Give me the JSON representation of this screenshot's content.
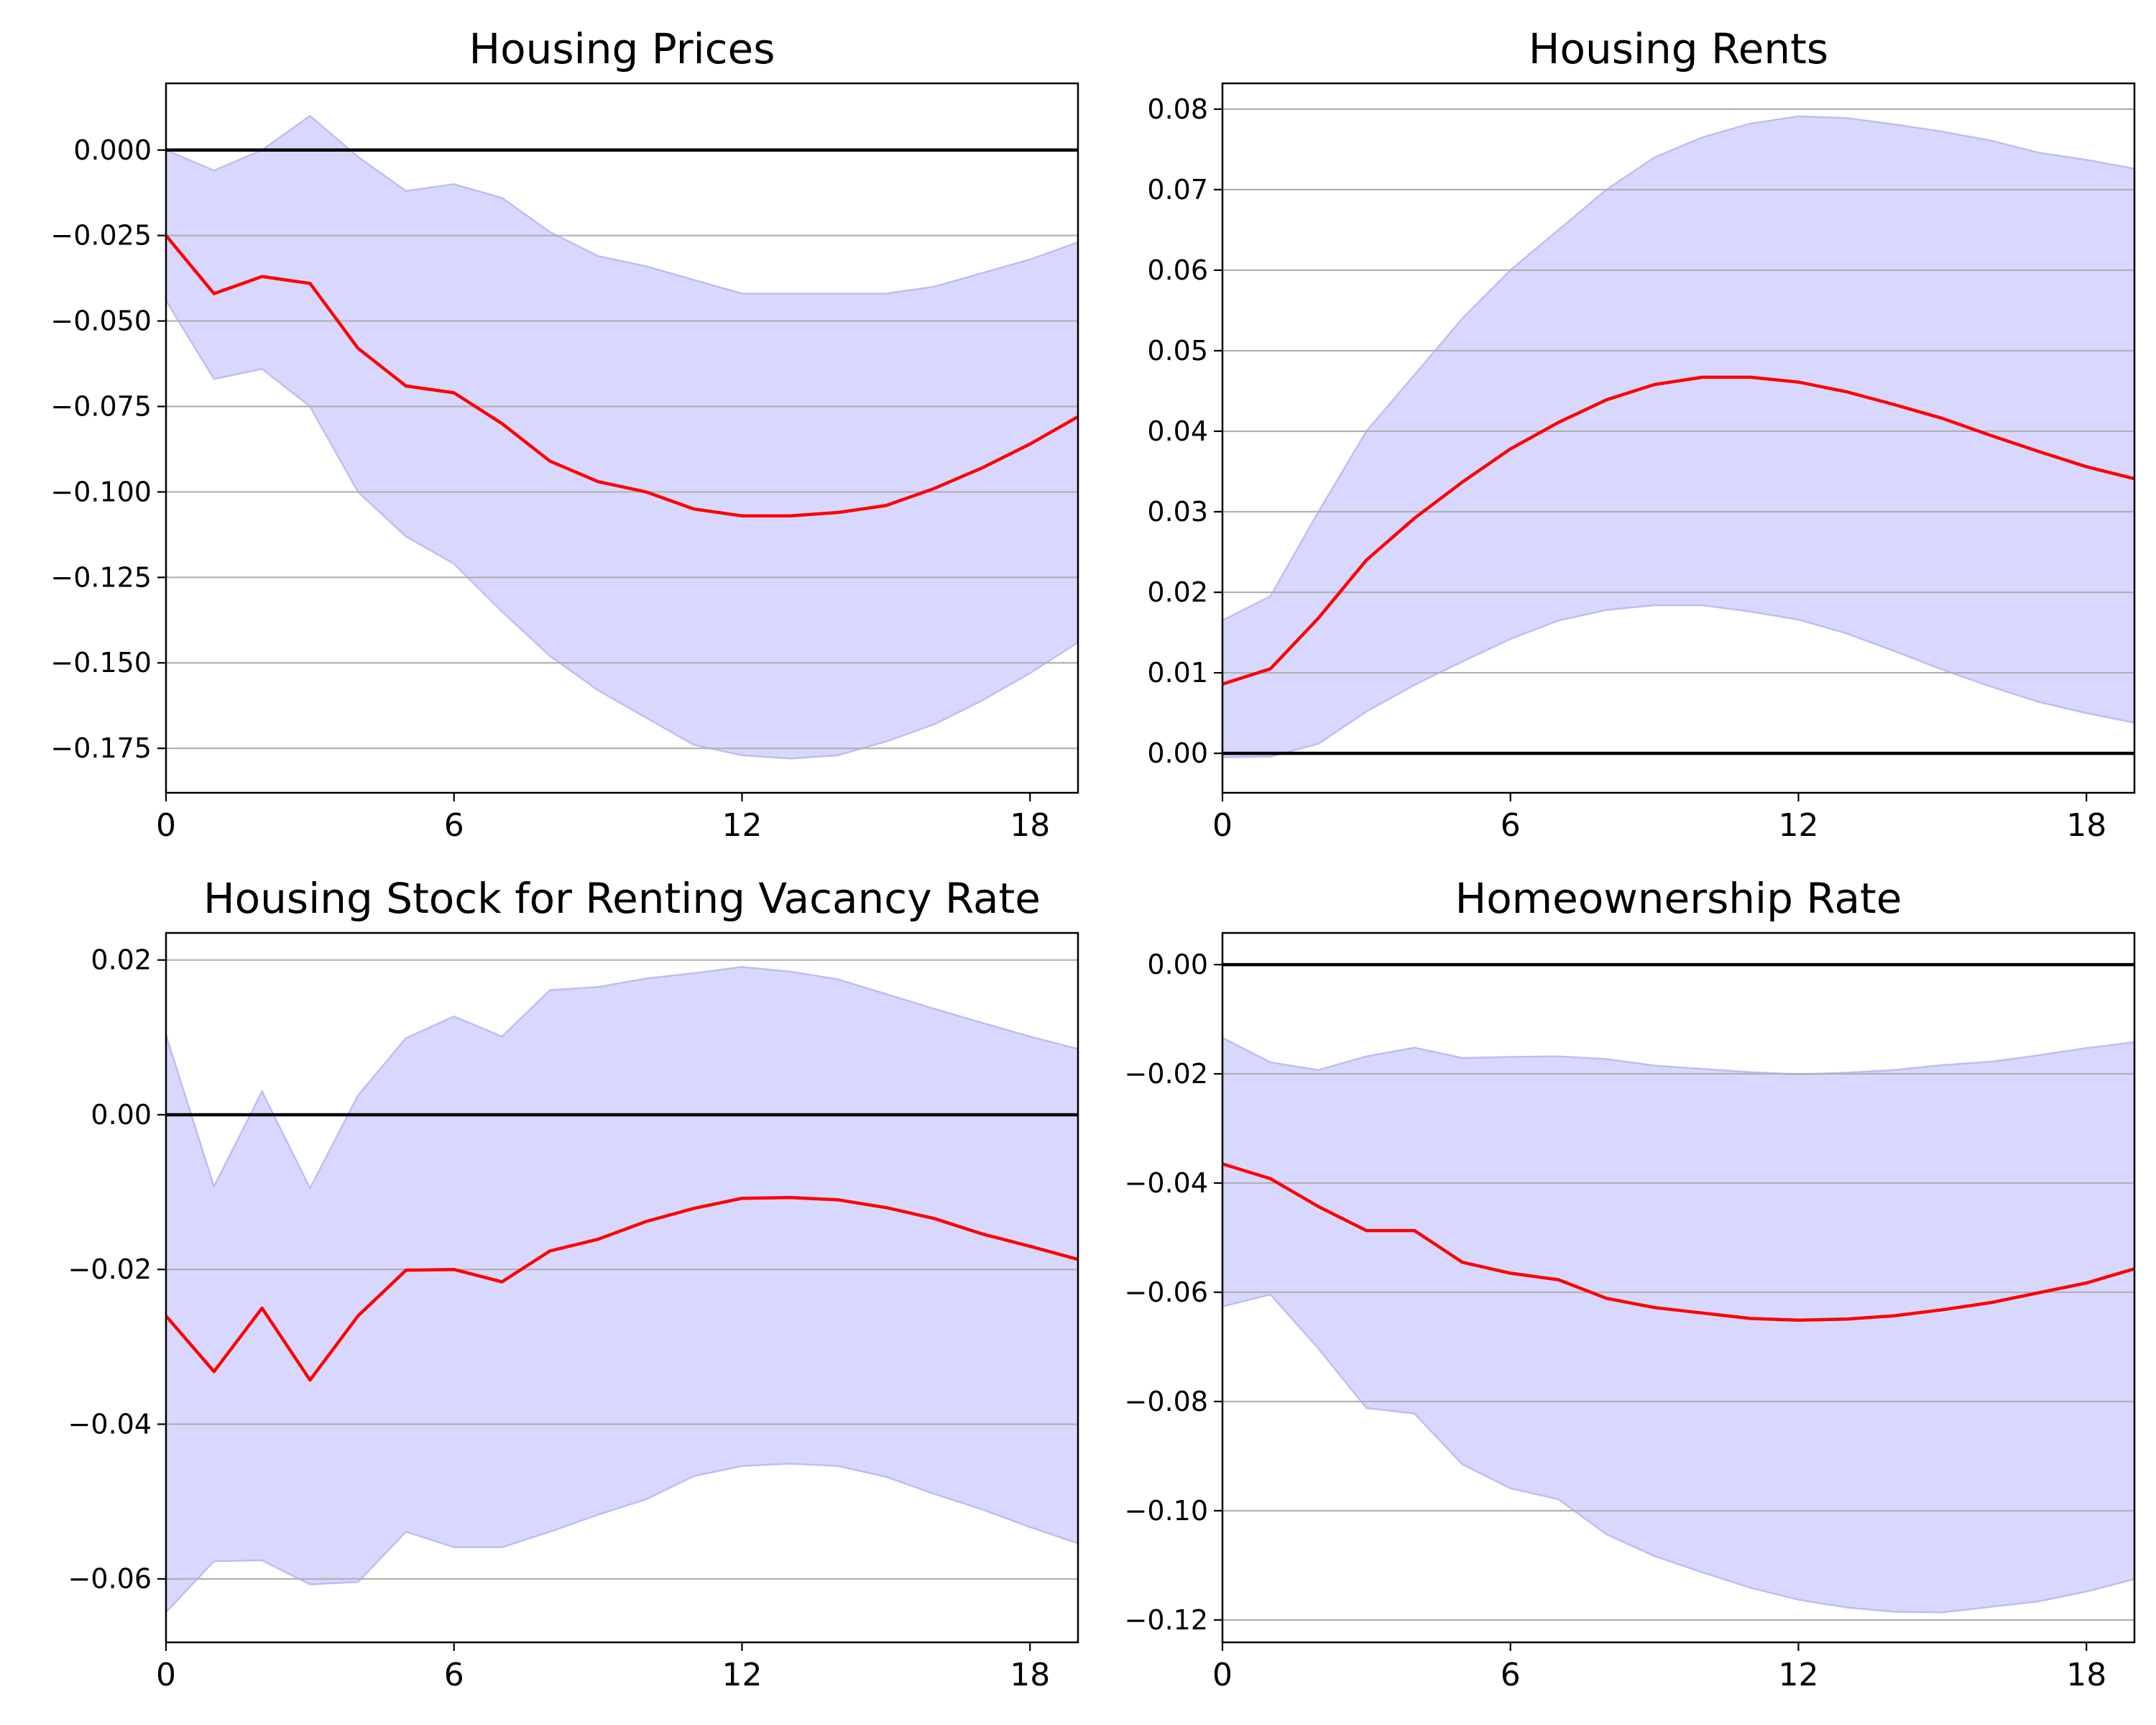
{
  "chart_data": [
    {
      "type": "line",
      "title": "Housing Prices",
      "xlabel": "",
      "ylabel": "",
      "xlim": [
        0,
        19
      ],
      "ylim": [
        -0.188,
        0.0195
      ],
      "xticks": [
        0,
        6,
        12,
        18
      ],
      "xtick_labels": [
        "0",
        "6",
        "12",
        "18"
      ],
      "yticks": [
        0.0,
        -0.025,
        -0.05,
        -0.075,
        -0.1,
        -0.125,
        -0.15,
        -0.175
      ],
      "ytick_labels": [
        "0.000",
        "−0.025",
        "−0.050",
        "−0.075",
        "−0.100",
        "−0.125",
        "−0.150",
        "−0.175"
      ],
      "grid": "horizontal",
      "zero_line": 0,
      "x": [
        0,
        1,
        2,
        3,
        4,
        5,
        6,
        7,
        8,
        9,
        10,
        11,
        12,
        13,
        14,
        15,
        16,
        17,
        18,
        19
      ],
      "series": [
        {
          "role": "estimate",
          "color": "#ff0000",
          "values": [
            -0.025,
            -0.042,
            -0.037,
            -0.039,
            -0.058,
            -0.069,
            -0.071,
            -0.08,
            -0.091,
            -0.097,
            -0.1,
            -0.105,
            -0.107,
            -0.107,
            -0.106,
            -0.104,
            -0.099,
            -0.093,
            -0.086,
            -0.078
          ]
        },
        {
          "role": "band_upper",
          "color": "#ccccff",
          "values": [
            0.0,
            -0.006,
            0.0,
            0.01,
            -0.002,
            -0.012,
            -0.01,
            -0.014,
            -0.024,
            -0.031,
            -0.034,
            -0.038,
            -0.042,
            -0.042,
            -0.042,
            -0.042,
            -0.04,
            -0.036,
            -0.032,
            -0.027
          ]
        },
        {
          "role": "band_lower",
          "color": "#ccccff",
          "values": [
            -0.044,
            -0.067,
            -0.064,
            -0.075,
            -0.1,
            -0.113,
            -0.121,
            -0.135,
            -0.148,
            -0.158,
            -0.166,
            -0.174,
            -0.177,
            -0.178,
            -0.177,
            -0.173,
            -0.168,
            -0.161,
            -0.153,
            -0.144
          ]
        }
      ]
    },
    {
      "type": "line",
      "title": "Housing Rents",
      "xlabel": "",
      "ylabel": "",
      "xlim": [
        0,
        19
      ],
      "ylim": [
        -0.0049,
        0.0832
      ],
      "xticks": [
        0,
        6,
        12,
        18
      ],
      "xtick_labels": [
        "0",
        "6",
        "12",
        "18"
      ],
      "yticks": [
        0.0,
        0.01,
        0.02,
        0.03,
        0.04,
        0.05,
        0.06,
        0.07,
        0.08
      ],
      "ytick_labels": [
        "0.00",
        "0.01",
        "0.02",
        "0.03",
        "0.04",
        "0.05",
        "0.06",
        "0.07",
        "0.08"
      ],
      "grid": "horizontal",
      "zero_line": 0,
      "x": [
        0,
        1,
        2,
        3,
        4,
        5,
        6,
        7,
        8,
        9,
        10,
        11,
        12,
        13,
        14,
        15,
        16,
        17,
        18,
        19
      ],
      "series": [
        {
          "role": "estimate",
          "color": "#ff0000",
          "values": [
            0.0086,
            0.0105,
            0.0168,
            0.024,
            0.0292,
            0.0337,
            0.0378,
            0.0411,
            0.0439,
            0.0458,
            0.0467,
            0.0467,
            0.0461,
            0.0449,
            0.0433,
            0.0416,
            0.0395,
            0.0375,
            0.0356,
            0.0341
          ]
        },
        {
          "role": "band_upper",
          "color": "#ccccff",
          "values": [
            0.0165,
            0.0195,
            0.03,
            0.04,
            0.047,
            0.054,
            0.06,
            0.065,
            0.07,
            0.074,
            0.0765,
            0.0782,
            0.0791,
            0.0789,
            0.0781,
            0.0772,
            0.0761,
            0.0746,
            0.0737,
            0.0726
          ]
        },
        {
          "role": "band_lower",
          "color": "#ccccff",
          "values": [
            -0.0005,
            -0.0004,
            0.0012,
            0.0052,
            0.0085,
            0.0114,
            0.0142,
            0.0165,
            0.0178,
            0.0184,
            0.0184,
            0.0176,
            0.0166,
            0.0149,
            0.0127,
            0.0104,
            0.0083,
            0.0064,
            0.005,
            0.0038
          ]
        }
      ]
    },
    {
      "type": "line",
      "title": "Housing Stock for Renting Vacancy Rate",
      "xlabel": "",
      "ylabel": "",
      "xlim": [
        0,
        19
      ],
      "ylim": [
        -0.0682,
        0.0235
      ],
      "xticks": [
        0,
        6,
        12,
        18
      ],
      "xtick_labels": [
        "0",
        "6",
        "12",
        "18"
      ],
      "yticks": [
        0.02,
        0.0,
        -0.02,
        -0.04,
        -0.06
      ],
      "ytick_labels": [
        "0.02",
        "0.00",
        "−0.02",
        "−0.04",
        "−0.06"
      ],
      "grid": "horizontal",
      "zero_line": 0,
      "x": [
        0,
        1,
        2,
        3,
        4,
        5,
        6,
        7,
        8,
        9,
        10,
        11,
        12,
        13,
        14,
        15,
        16,
        17,
        18,
        19
      ],
      "series": [
        {
          "role": "estimate",
          "color": "#ff0000",
          "values": [
            -0.026,
            -0.0332,
            -0.025,
            -0.0343,
            -0.026,
            -0.0201,
            -0.02,
            -0.0216,
            -0.0176,
            -0.0161,
            -0.0138,
            -0.0121,
            -0.0108,
            -0.0107,
            -0.011,
            -0.012,
            -0.0134,
            -0.0154,
            -0.017,
            -0.0187
          ]
        },
        {
          "role": "band_upper",
          "color": "#ccccff",
          "values": [
            0.0103,
            -0.0093,
            0.003,
            -0.0095,
            0.0025,
            0.0099,
            0.0127,
            0.0101,
            0.0161,
            0.0165,
            0.0176,
            0.0183,
            0.0191,
            0.0185,
            0.0175,
            0.0156,
            0.0137,
            0.0119,
            0.0101,
            0.0085
          ]
        },
        {
          "role": "band_lower",
          "color": "#ccccff",
          "values": [
            -0.0643,
            -0.0577,
            -0.0576,
            -0.0607,
            -0.0604,
            -0.0539,
            -0.0559,
            -0.0559,
            -0.0539,
            -0.0517,
            -0.0497,
            -0.0467,
            -0.0454,
            -0.0451,
            -0.0454,
            -0.0468,
            -0.049,
            -0.051,
            -0.0533,
            -0.0554
          ]
        }
      ]
    },
    {
      "type": "line",
      "title": "Homeownership Rate",
      "xlabel": "",
      "ylabel": "",
      "xlim": [
        0,
        19
      ],
      "ylim": [
        -0.1241,
        0.0058
      ],
      "xticks": [
        0,
        6,
        12,
        18
      ],
      "xtick_labels": [
        "0",
        "6",
        "12",
        "18"
      ],
      "yticks": [
        0.0,
        -0.02,
        -0.04,
        -0.06,
        -0.08,
        -0.1,
        -0.12
      ],
      "ytick_labels": [
        "0.00",
        "−0.02",
        "−0.04",
        "−0.06",
        "−0.08",
        "−0.10",
        "−0.12"
      ],
      "grid": "horizontal",
      "zero_line": 0,
      "x": [
        0,
        1,
        2,
        3,
        4,
        5,
        6,
        7,
        8,
        9,
        10,
        11,
        12,
        13,
        14,
        15,
        16,
        17,
        18,
        19
      ],
      "series": [
        {
          "role": "estimate",
          "color": "#ff0000",
          "values": [
            -0.0365,
            -0.0392,
            -0.0443,
            -0.0487,
            -0.0487,
            -0.0545,
            -0.0565,
            -0.0577,
            -0.0611,
            -0.0628,
            -0.0638,
            -0.0648,
            -0.0651,
            -0.0649,
            -0.0643,
            -0.0632,
            -0.0619,
            -0.0601,
            -0.0583,
            -0.0557
          ]
        },
        {
          "role": "band_upper",
          "color": "#ccccff",
          "values": [
            -0.0134,
            -0.0179,
            -0.0193,
            -0.0168,
            -0.0152,
            -0.0171,
            -0.0169,
            -0.0168,
            -0.0173,
            -0.0185,
            -0.0191,
            -0.0197,
            -0.0201,
            -0.0198,
            -0.0193,
            -0.0184,
            -0.0178,
            -0.0166,
            -0.0153,
            -0.0142
          ]
        },
        {
          "role": "band_lower",
          "color": "#ccccff",
          "values": [
            -0.0626,
            -0.0604,
            -0.0703,
            -0.0812,
            -0.0822,
            -0.0915,
            -0.0959,
            -0.0979,
            -0.1043,
            -0.1083,
            -0.1113,
            -0.1141,
            -0.1163,
            -0.1177,
            -0.1185,
            -0.1186,
            -0.1176,
            -0.1166,
            -0.1148,
            -0.1125
          ]
        }
      ]
    }
  ]
}
